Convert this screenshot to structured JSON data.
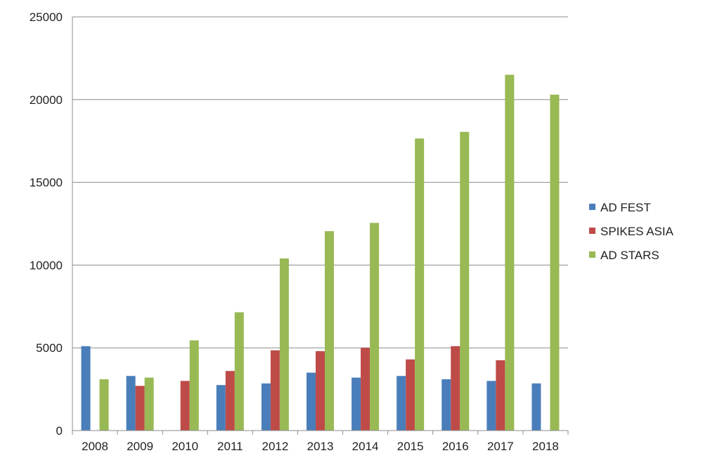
{
  "chart_data": {
    "type": "bar",
    "title": "",
    "xlabel": "",
    "ylabel": "",
    "categories": [
      "2008",
      "2009",
      "2010",
      "2011",
      "2012",
      "2013",
      "2014",
      "2015",
      "2016",
      "2017",
      "2018"
    ],
    "ylim": [
      0,
      25000
    ],
    "yticks": [
      "0",
      "5000",
      "10000",
      "15000",
      "20000",
      "25000"
    ],
    "grid": true,
    "legend_position": "right",
    "series": [
      {
        "name": "AD FEST",
        "color": "#4a7ebb",
        "values": [
          5100,
          3300,
          0,
          2750,
          2850,
          3500,
          3200,
          3300,
          3100,
          3000,
          2850
        ]
      },
      {
        "name": "SPIKES ASIA",
        "color": "#be4b48",
        "values": [
          0,
          2700,
          3000,
          3600,
          4850,
          4800,
          5000,
          4300,
          5100,
          4250,
          0
        ]
      },
      {
        "name": "AD STARS",
        "color": "#98b954",
        "values": [
          3100,
          3200,
          5450,
          7150,
          10400,
          12050,
          12550,
          17650,
          18050,
          21500,
          20300
        ]
      }
    ]
  }
}
